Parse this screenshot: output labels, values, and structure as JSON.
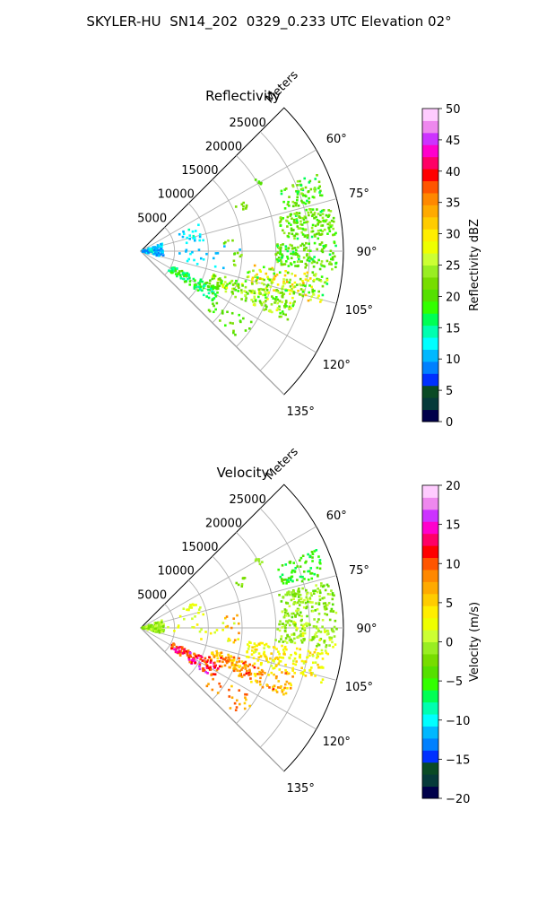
{
  "figure_title": "SKYLER-HU  SN14_202  0329_0.233 UTC Elevation 02°",
  "chart_data": [
    {
      "type": "polar-sector",
      "title": "Reflectivity",
      "range_label": "Meters",
      "range_ticks": [
        5000,
        10000,
        15000,
        20000,
        25000
      ],
      "range_max": 30000,
      "azimuth_ticks": [
        "60°",
        "75°",
        "90°",
        "105°",
        "120°",
        "135°"
      ],
      "azimuth_range": [
        45,
        135
      ],
      "colorbar": {
        "label": "Reflectivity dBZ",
        "min": 0,
        "max": 50,
        "ticks": [
          "0",
          "5",
          "10",
          "15",
          "20",
          "25",
          "30",
          "35",
          "40",
          "45",
          "50"
        ],
        "colors": [
          "#00004a",
          "#063a3a",
          "#0a4a25",
          "#0030ff",
          "#0080ff",
          "#00b8ff",
          "#00ffff",
          "#00ffb0",
          "#00ff55",
          "#33ff00",
          "#55e000",
          "#77dd00",
          "#99ee22",
          "#ccff33",
          "#eeff00",
          "#ffee00",
          "#ffcc00",
          "#ffaa00",
          "#ff8800",
          "#ff5500",
          "#ff0000",
          "#ff0066",
          "#ff00cc",
          "#cc33ff",
          "#ee88ee",
          "#ffccff"
        ]
      },
      "echo_clusters": [
        {
          "az": [
            58,
            62
          ],
          "r": [
            19500,
            20500
          ],
          "dbz": [
            18,
            22
          ],
          "count": 6
        },
        {
          "az": [
            64,
            68
          ],
          "r": [
            15500,
            17500
          ],
          "dbz": [
            20,
            23
          ],
          "count": 8
        },
        {
          "az": [
            66,
            74
          ],
          "r": [
            22000,
            28500
          ],
          "dbz": [
            16,
            24
          ],
          "count": 70
        },
        {
          "az": [
            76,
            86
          ],
          "r": [
            21000,
            29000
          ],
          "dbz": [
            17,
            25
          ],
          "count": 150
        },
        {
          "az": [
            87,
            96
          ],
          "r": [
            20000,
            29000
          ],
          "dbz": [
            16,
            24
          ],
          "count": 140
        },
        {
          "az": [
            97,
            107
          ],
          "r": [
            16000,
            28000
          ],
          "dbz": [
            17,
            33
          ],
          "count": 150
        },
        {
          "az": [
            107,
            116
          ],
          "r": [
            11000,
            24000
          ],
          "dbz": [
            18,
            28
          ],
          "count": 160
        },
        {
          "az": [
            115,
            125
          ],
          "r": [
            5000,
            13000
          ],
          "dbz": [
            14,
            20
          ],
          "count": 110
        },
        {
          "az": [
            122,
            132
          ],
          "r": [
            13000,
            20000
          ],
          "dbz": [
            18,
            22
          ],
          "count": 25
        },
        {
          "az": [
            70,
            105
          ],
          "r": [
            200,
            3500
          ],
          "dbz": [
            8,
            14
          ],
          "count": 90
        },
        {
          "az": [
            65,
            80
          ],
          "r": [
            6000,
            9500
          ],
          "dbz": [
            10,
            14
          ],
          "count": 20
        },
        {
          "az": [
            86,
            103
          ],
          "r": [
            4000,
            15000
          ],
          "dbz": [
            10,
            13
          ],
          "count": 20
        },
        {
          "az": [
            82,
            100
          ],
          "r": [
            12000,
            15000
          ],
          "dbz": [
            20,
            24
          ],
          "count": 12
        }
      ]
    },
    {
      "type": "polar-sector",
      "title": "Velocity",
      "range_label": "Meters",
      "range_ticks": [
        5000,
        10000,
        15000,
        20000,
        25000
      ],
      "range_max": 30000,
      "azimuth_ticks": [
        "60°",
        "75°",
        "90°",
        "105°",
        "120°",
        "135°"
      ],
      "azimuth_range": [
        45,
        135
      ],
      "colorbar": {
        "label": "Velocity (m/s)",
        "min": -20,
        "max": 20,
        "ticks": [
          "−20",
          "−15",
          "−10",
          "−5",
          "0",
          "5",
          "10",
          "15",
          "20"
        ],
        "colors": [
          "#00004a",
          "#063a3a",
          "#0a4a25",
          "#0030ff",
          "#0080ff",
          "#00b8ff",
          "#00ffff",
          "#00ffb0",
          "#00ff55",
          "#33ff00",
          "#55e000",
          "#77dd00",
          "#99ee22",
          "#ccff33",
          "#eeff00",
          "#ffee00",
          "#ffcc00",
          "#ffaa00",
          "#ff8800",
          "#ff5500",
          "#ff0000",
          "#ff0066",
          "#ff00cc",
          "#cc33ff",
          "#ee88ee",
          "#ffccff"
        ]
      },
      "echo_clusters": [
        {
          "az": [
            58,
            62
          ],
          "r": [
            19500,
            20500
          ],
          "vel": [
            -2,
            0
          ],
          "count": 6
        },
        {
          "az": [
            64,
            68
          ],
          "r": [
            15500,
            17500
          ],
          "vel": [
            -3,
            0
          ],
          "count": 8
        },
        {
          "az": [
            66,
            74
          ],
          "r": [
            22000,
            28500
          ],
          "vel": [
            -7,
            -3
          ],
          "count": 70
        },
        {
          "az": [
            76,
            86
          ],
          "r": [
            21000,
            29000
          ],
          "vel": [
            -4,
            1
          ],
          "count": 150
        },
        {
          "az": [
            87,
            96
          ],
          "r": [
            20000,
            29000
          ],
          "vel": [
            -3,
            2
          ],
          "count": 140
        },
        {
          "az": [
            97,
            107
          ],
          "r": [
            16000,
            28000
          ],
          "vel": [
            1,
            6
          ],
          "count": 150
        },
        {
          "az": [
            107,
            116
          ],
          "r": [
            11000,
            24000
          ],
          "vel": [
            3,
            11
          ],
          "count": 160
        },
        {
          "az": [
            115,
            125
          ],
          "r": [
            5000,
            13000
          ],
          "vel": [
            8,
            16
          ],
          "count": 110
        },
        {
          "az": [
            122,
            132
          ],
          "r": [
            13000,
            20000
          ],
          "vel": [
            5,
            11
          ],
          "count": 25
        },
        {
          "az": [
            70,
            105
          ],
          "r": [
            200,
            3500
          ],
          "vel": [
            -3,
            1
          ],
          "count": 90
        },
        {
          "az": [
            65,
            80
          ],
          "r": [
            6000,
            9500
          ],
          "vel": [
            0,
            3
          ],
          "count": 20
        },
        {
          "az": [
            86,
            103
          ],
          "r": [
            4000,
            15000
          ],
          "vel": [
            0,
            4
          ],
          "count": 20
        },
        {
          "az": [
            82,
            100
          ],
          "r": [
            12000,
            15000
          ],
          "vel": [
            4,
            9
          ],
          "count": 12
        }
      ]
    }
  ]
}
